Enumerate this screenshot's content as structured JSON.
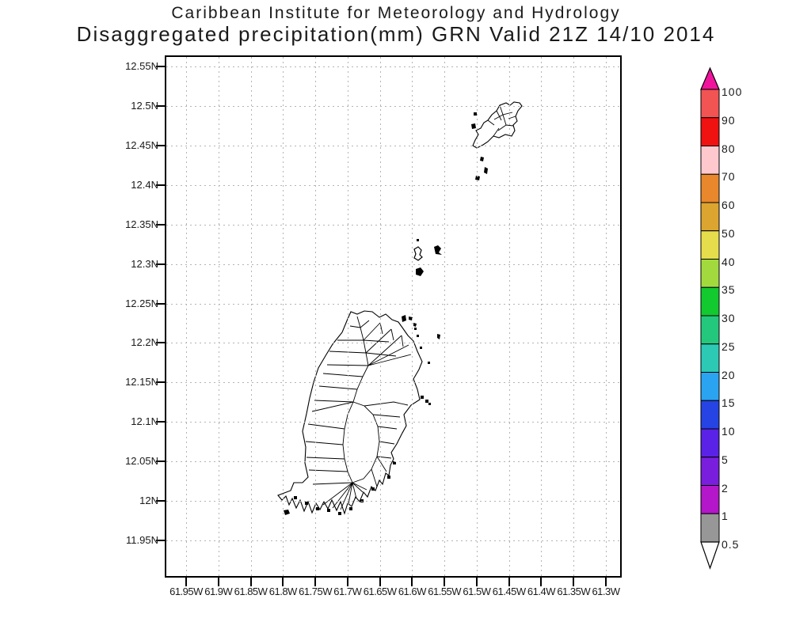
{
  "title": {
    "line1": "Caribbean Institute for Meteorology and Hydrology",
    "line2": "Disaggregated precipitation(mm) GRN Valid 21Z 14/10 2014"
  },
  "map_axes": {
    "y_tick_labels": [
      "12.55N",
      "12.5N",
      "12.45N",
      "12.4N",
      "12.35N",
      "12.3N",
      "12.25N",
      "12.2N",
      "12.15N",
      "12.1N",
      "12.05N",
      "12N",
      "11.95N"
    ],
    "x_tick_labels": [
      "61.95W",
      "61.9W",
      "61.85W",
      "61.8W",
      "61.75W",
      "61.7W",
      "61.65W",
      "61.6W",
      "61.55W",
      "61.5W",
      "61.45W",
      "61.4W",
      "61.35W",
      "61.3W"
    ]
  },
  "colorbar": {
    "boundary_labels": [
      "100",
      "90",
      "80",
      "70",
      "60",
      "50",
      "40",
      "35",
      "30",
      "25",
      "20",
      "15",
      "10",
      "5",
      "2",
      "1",
      "0.5"
    ],
    "above_max_color": "#f0149c",
    "segment_colors_top_to_bottom": [
      "#f25353",
      "#f01111",
      "#ffc8cd",
      "#e8872b",
      "#dba52f",
      "#e5dd4b",
      "#a2da3e",
      "#12c92f",
      "#23c87d",
      "#2cc9b5",
      "#2aa4f0",
      "#2644e3",
      "#5a22e6",
      "#7a1ede",
      "#b416c9",
      "#979797"
    ],
    "below_min_color": "#ffffff",
    "outline_color": "#000000"
  },
  "chart_data": {
    "type": "heatmap",
    "title": "Disaggregated precipitation(mm) GRN Valid 21Z 14/10 2014",
    "x_range_deg_west": [
      61.95,
      61.3
    ],
    "y_range_deg_north": [
      11.95,
      12.55
    ],
    "grid": "dotted",
    "colorbar_levels_mm": [
      0.5,
      1,
      2,
      5,
      10,
      15,
      20,
      25,
      30,
      35,
      40,
      50,
      60,
      70,
      80,
      90,
      100
    ],
    "shaded_values": "none visible (no precipitation shading drawn on map)"
  }
}
